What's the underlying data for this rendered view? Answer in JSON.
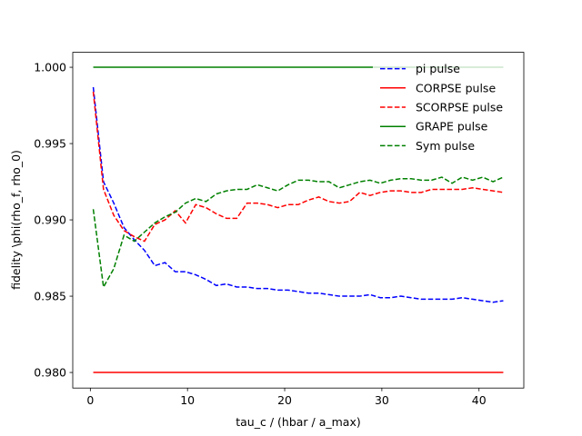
{
  "chart_data": {
    "type": "line",
    "xlabel": "tau_c / (hbar / a_max)",
    "ylabel": "fidelity \\phi(rho_f, rho_0)",
    "x": [
      0.3,
      1.355,
      2.41,
      3.465,
      4.52,
      5.575,
      6.63,
      7.685,
      8.74,
      9.795,
      10.85,
      11.905,
      12.96,
      14.015,
      15.07,
      16.125,
      17.18,
      18.235,
      19.29,
      20.345,
      21.4,
      22.455,
      23.51,
      24.565,
      25.62,
      26.675,
      27.73,
      28.785,
      29.84,
      30.895,
      31.95,
      33.005,
      34.06,
      35.115,
      36.17,
      37.225,
      38.28,
      39.335,
      40.39,
      41.445,
      42.5
    ],
    "series": [
      {
        "name": "pi pulse",
        "color": "#0000ff",
        "dashed": true,
        "values": [
          0.9987,
          0.9925,
          0.9911,
          0.9895,
          0.9887,
          0.988,
          0.987,
          0.9872,
          0.9866,
          0.9866,
          0.9864,
          0.9861,
          0.9857,
          0.9858,
          0.9856,
          0.9856,
          0.9855,
          0.9855,
          0.9854,
          0.9854,
          0.9853,
          0.9852,
          0.9852,
          0.9851,
          0.985,
          0.985,
          0.985,
          0.9851,
          0.9849,
          0.9849,
          0.985,
          0.9849,
          0.9848,
          0.9848,
          0.9848,
          0.9848,
          0.9849,
          0.9848,
          0.9847,
          0.9846,
          0.9847
        ]
      },
      {
        "name": "CORPSE pulse",
        "color": "#ff0000",
        "dashed": false,
        "values": [
          0.98,
          0.98,
          0.98,
          0.98,
          0.98,
          0.98,
          0.98,
          0.98,
          0.98,
          0.98,
          0.98,
          0.98,
          0.98,
          0.98,
          0.98,
          0.98,
          0.98,
          0.98,
          0.98,
          0.98,
          0.98,
          0.98,
          0.98,
          0.98,
          0.98,
          0.98,
          0.98,
          0.98,
          0.98,
          0.98,
          0.98,
          0.98,
          0.98,
          0.98,
          0.98,
          0.98,
          0.98,
          0.98,
          0.98,
          0.98,
          0.98
        ]
      },
      {
        "name": "SCORPSE pulse",
        "color": "#ff0000",
        "dashed": true,
        "values": [
          0.9984,
          0.992,
          0.9903,
          0.9893,
          0.9889,
          0.9886,
          0.9897,
          0.99,
          0.9906,
          0.9898,
          0.991,
          0.9908,
          0.9904,
          0.9901,
          0.9901,
          0.9911,
          0.9911,
          0.991,
          0.9908,
          0.991,
          0.991,
          0.9913,
          0.9915,
          0.9912,
          0.9911,
          0.9912,
          0.9918,
          0.9916,
          0.9918,
          0.9919,
          0.9919,
          0.9918,
          0.9918,
          0.992,
          0.992,
          0.992,
          0.992,
          0.9921,
          0.992,
          0.9919,
          0.9918
        ]
      },
      {
        "name": "GRAPE pulse",
        "color": "#008000",
        "dashed": false,
        "values": [
          1,
          1,
          1,
          1,
          1,
          1,
          1,
          1,
          1,
          1,
          1,
          1,
          1,
          1,
          1,
          1,
          1,
          1,
          1,
          1,
          1,
          1,
          1,
          1,
          1,
          1,
          1,
          1,
          1,
          1,
          1,
          1,
          1,
          1,
          1,
          1,
          1,
          1,
          1,
          1,
          1
        ]
      },
      {
        "name": "Sym pulse",
        "color": "#008000",
        "dashed": true,
        "values": [
          0.9907,
          0.9856,
          0.9868,
          0.989,
          0.9886,
          0.9892,
          0.9898,
          0.9902,
          0.9905,
          0.9911,
          0.9914,
          0.9912,
          0.9917,
          0.9919,
          0.992,
          0.992,
          0.9923,
          0.9921,
          0.9919,
          0.9923,
          0.9926,
          0.9926,
          0.9925,
          0.9925,
          0.9921,
          0.9923,
          0.9925,
          0.9926,
          0.9924,
          0.9926,
          0.9927,
          0.9927,
          0.9926,
          0.9926,
          0.9928,
          0.9924,
          0.9928,
          0.9926,
          0.9928,
          0.9925,
          0.9928
        ]
      }
    ],
    "xlim": [
      -1.81,
      44.61
    ],
    "ylim": [
      0.97898,
      1.00098
    ],
    "xticks": [
      0,
      10,
      20,
      30,
      40
    ],
    "yticks": [
      {
        "value": 0.98,
        "label": "0.980"
      },
      {
        "value": 0.985,
        "label": "0.985"
      },
      {
        "value": 0.99,
        "label": "0.990"
      },
      {
        "value": 0.995,
        "label": "0.995"
      },
      {
        "value": 1.0,
        "label": "1.000"
      }
    ],
    "legend": "upper right",
    "grid": false
  }
}
